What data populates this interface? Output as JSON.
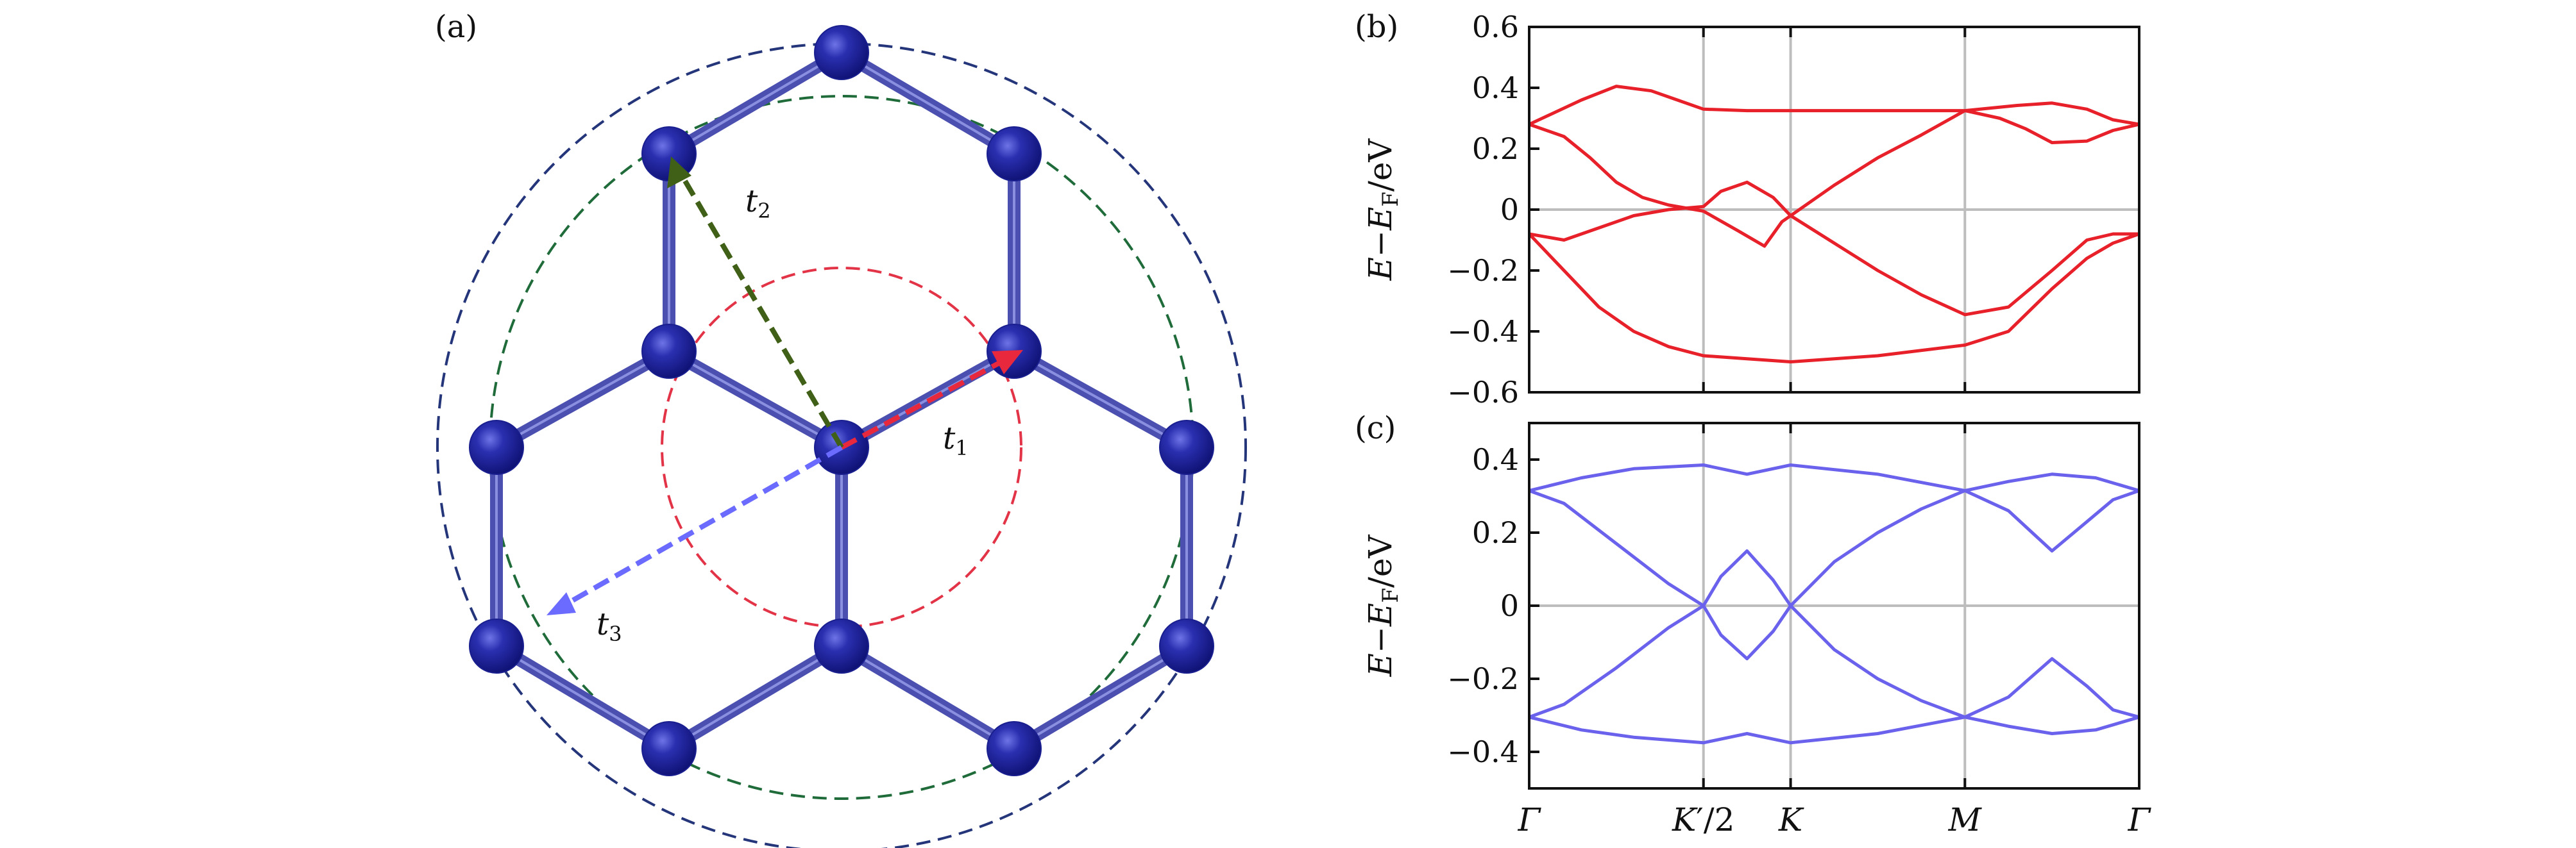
{
  "panel_labels": {
    "a": "(a)",
    "b": "(b)",
    "c": "(c)"
  },
  "lattice": {
    "bond_color": "#4a4fb0",
    "atom_color": "#1a1f8f",
    "hopping": [
      {
        "name": "t1",
        "base": "t",
        "sub": "1",
        "color": "#e8283c",
        "circle_color": "#e23347"
      },
      {
        "name": "t2",
        "base": "t",
        "sub": "2",
        "color": "#3f6016",
        "circle_color": "#1f6b3a"
      },
      {
        "name": "t3",
        "base": "t",
        "sub": "3",
        "color": "#6b6bff",
        "circle_color": "#24357a"
      }
    ]
  },
  "chart_data": [
    {
      "type": "line",
      "panel": "(b)",
      "color": "#e8202a",
      "ylabel": {
        "E": "E",
        "minus": "−",
        "F": "E",
        "sub": "F",
        "unit": "/eV"
      },
      "ylim": [
        -0.6,
        0.6
      ],
      "yticks": [
        -0.6,
        -0.4,
        -0.2,
        0,
        0.2,
        0.4,
        0.6
      ],
      "ytick_labels": [
        "−0.6",
        "−0.4",
        "−0.2",
        "0",
        "0.2",
        "0.4",
        "0.6"
      ],
      "kpoints": [
        0,
        1,
        1.5,
        2.5,
        3.5
      ],
      "x_range": [
        0,
        3.5
      ],
      "zero_line": true,
      "series": [
        {
          "name": "band-1",
          "points": [
            [
              0,
              0.28
            ],
            [
              0.3,
              0.36
            ],
            [
              0.5,
              0.405
            ],
            [
              0.7,
              0.39
            ],
            [
              0.85,
              0.36
            ],
            [
              1.0,
              0.33
            ],
            [
              1.25,
              0.325
            ],
            [
              1.5,
              0.325
            ],
            [
              2.0,
              0.325
            ],
            [
              2.5,
              0.325
            ],
            [
              2.8,
              0.342
            ],
            [
              3.0,
              0.35
            ],
            [
              3.2,
              0.33
            ],
            [
              3.35,
              0.295
            ],
            [
              3.5,
              0.28
            ]
          ]
        },
        {
          "name": "band-2",
          "points": [
            [
              0,
              0.28
            ],
            [
              0.2,
              0.24
            ],
            [
              0.35,
              0.17
            ],
            [
              0.5,
              0.09
            ],
            [
              0.65,
              0.04
            ],
            [
              0.8,
              0.015
            ],
            [
              1.0,
              -0.005
            ],
            [
              1.2,
              -0.07
            ],
            [
              1.35,
              -0.12
            ],
            [
              1.45,
              -0.04
            ],
            [
              1.5,
              -0.02
            ],
            [
              1.75,
              0.08
            ],
            [
              2.0,
              0.17
            ],
            [
              2.25,
              0.245
            ],
            [
              2.5,
              0.325
            ],
            [
              2.7,
              0.3
            ],
            [
              2.85,
              0.265
            ],
            [
              3.0,
              0.22
            ],
            [
              3.2,
              0.225
            ],
            [
              3.35,
              0.26
            ],
            [
              3.5,
              0.28
            ]
          ]
        },
        {
          "name": "band-3",
          "points": [
            [
              0,
              -0.08
            ],
            [
              0.2,
              -0.1
            ],
            [
              0.4,
              -0.06
            ],
            [
              0.6,
              -0.02
            ],
            [
              0.8,
              0.0
            ],
            [
              1.0,
              0.01
            ],
            [
              1.1,
              0.06
            ],
            [
              1.25,
              0.09
            ],
            [
              1.4,
              0.04
            ],
            [
              1.5,
              -0.02
            ],
            [
              1.75,
              -0.11
            ],
            [
              2.0,
              -0.2
            ],
            [
              2.25,
              -0.28
            ],
            [
              2.5,
              -0.345
            ],
            [
              2.75,
              -0.32
            ],
            [
              3.0,
              -0.2
            ],
            [
              3.2,
              -0.1
            ],
            [
              3.35,
              -0.08
            ],
            [
              3.5,
              -0.08
            ]
          ]
        },
        {
          "name": "band-4",
          "points": [
            [
              0,
              -0.08
            ],
            [
              0.2,
              -0.2
            ],
            [
              0.4,
              -0.32
            ],
            [
              0.6,
              -0.4
            ],
            [
              0.8,
              -0.45
            ],
            [
              1.0,
              -0.48
            ],
            [
              1.25,
              -0.49
            ],
            [
              1.5,
              -0.5
            ],
            [
              2.0,
              -0.48
            ],
            [
              2.5,
              -0.445
            ],
            [
              2.75,
              -0.4
            ],
            [
              3.0,
              -0.26
            ],
            [
              3.2,
              -0.16
            ],
            [
              3.35,
              -0.11
            ],
            [
              3.5,
              -0.08
            ]
          ]
        }
      ]
    },
    {
      "type": "line",
      "panel": "(c)",
      "color": "#6a62ec",
      "ylabel": {
        "E": "E",
        "minus": "−",
        "F": "E",
        "sub": "F",
        "unit": "/eV"
      },
      "ylim": [
        -0.5,
        0.5
      ],
      "yticks": [
        -0.4,
        -0.2,
        0,
        0.2,
        0.4
      ],
      "ytick_labels": [
        "−0.4",
        "−0.2",
        "0",
        "0.2",
        "0.4"
      ],
      "kpoints": [
        0,
        1,
        1.5,
        2.5,
        3.5
      ],
      "x_range": [
        0,
        3.5
      ],
      "xtick_labels": [
        {
          "base": "Γ",
          "suffix": ""
        },
        {
          "base": "K",
          "suffix": "′/2"
        },
        {
          "base": "K",
          "suffix": ""
        },
        {
          "base": "M",
          "suffix": ""
        },
        {
          "base": "Γ",
          "suffix": ""
        }
      ],
      "zero_line": true,
      "series": [
        {
          "name": "band-1",
          "points": [
            [
              0,
              0.315
            ],
            [
              0.3,
              0.35
            ],
            [
              0.6,
              0.375
            ],
            [
              1.0,
              0.385
            ],
            [
              1.25,
              0.36
            ],
            [
              1.5,
              0.385
            ],
            [
              2.0,
              0.36
            ],
            [
              2.5,
              0.315
            ],
            [
              2.75,
              0.34
            ],
            [
              3.0,
              0.36
            ],
            [
              3.25,
              0.35
            ],
            [
              3.5,
              0.315
            ]
          ]
        },
        {
          "name": "band-2",
          "points": [
            [
              0,
              0.315
            ],
            [
              0.2,
              0.28
            ],
            [
              0.5,
              0.17
            ],
            [
              0.8,
              0.06
            ],
            [
              1.0,
              0.0
            ],
            [
              1.1,
              0.08
            ],
            [
              1.25,
              0.15
            ],
            [
              1.4,
              0.07
            ],
            [
              1.5,
              0.0
            ],
            [
              1.75,
              0.12
            ],
            [
              2.0,
              0.2
            ],
            [
              2.25,
              0.265
            ],
            [
              2.5,
              0.315
            ],
            [
              2.75,
              0.26
            ],
            [
              3.0,
              0.15
            ],
            [
              3.2,
              0.23
            ],
            [
              3.35,
              0.29
            ],
            [
              3.5,
              0.315
            ]
          ]
        },
        {
          "name": "band-3",
          "points": [
            [
              0,
              -0.305
            ],
            [
              0.2,
              -0.27
            ],
            [
              0.5,
              -0.17
            ],
            [
              0.8,
              -0.06
            ],
            [
              1.0,
              0.0
            ],
            [
              1.1,
              -0.08
            ],
            [
              1.25,
              -0.145
            ],
            [
              1.4,
              -0.07
            ],
            [
              1.5,
              0.0
            ],
            [
              1.75,
              -0.12
            ],
            [
              2.0,
              -0.2
            ],
            [
              2.25,
              -0.26
            ],
            [
              2.5,
              -0.305
            ],
            [
              2.75,
              -0.25
            ],
            [
              3.0,
              -0.145
            ],
            [
              3.2,
              -0.22
            ],
            [
              3.35,
              -0.285
            ],
            [
              3.5,
              -0.305
            ]
          ]
        },
        {
          "name": "band-4",
          "points": [
            [
              0,
              -0.305
            ],
            [
              0.3,
              -0.34
            ],
            [
              0.6,
              -0.36
            ],
            [
              1.0,
              -0.375
            ],
            [
              1.25,
              -0.35
            ],
            [
              1.5,
              -0.375
            ],
            [
              2.0,
              -0.35
            ],
            [
              2.5,
              -0.305
            ],
            [
              2.75,
              -0.33
            ],
            [
              3.0,
              -0.35
            ],
            [
              3.25,
              -0.34
            ],
            [
              3.5,
              -0.305
            ]
          ]
        }
      ]
    }
  ]
}
